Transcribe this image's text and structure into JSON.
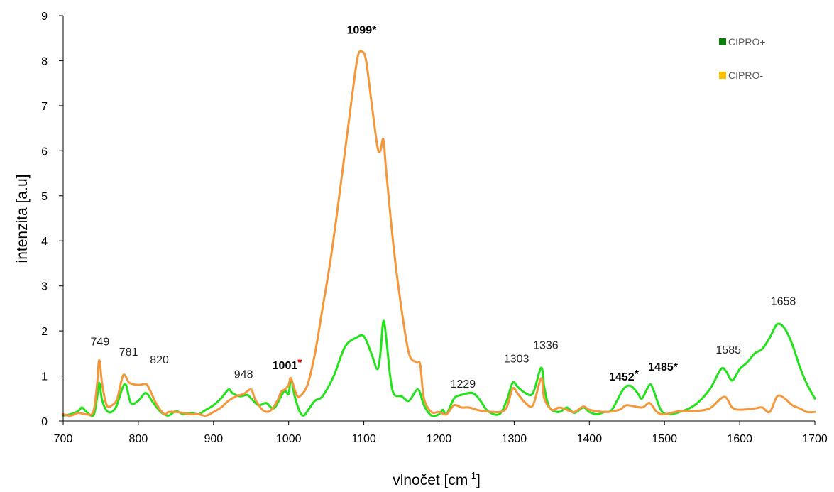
{
  "chart_data": {
    "type": "line",
    "xlabel": "vlnočet [cm",
    "xlabel_sup": "-1",
    "xlabel_end": "]",
    "ylabel": "intenzita [a.u]",
    "xlim": [
      700,
      1700
    ],
    "ylim": [
      0,
      9
    ],
    "x_ticks": [
      "700",
      "800",
      "900",
      "1000",
      "1100",
      "1200",
      "1300",
      "1400",
      "1500",
      "1600",
      "1700"
    ],
    "y_ticks": [
      "0",
      "1",
      "2",
      "3",
      "4",
      "5",
      "6",
      "7",
      "8",
      "9"
    ],
    "grid": false,
    "legend_position": "top-right",
    "legend": [
      {
        "label": "CIPRO+",
        "color": "#0a7d0a"
      },
      {
        "label": "CIPRO-",
        "color": "#ffc000"
      }
    ],
    "series": [
      {
        "name": "CIPRO+",
        "color": "#22e31a",
        "points": [
          [
            700,
            0.12
          ],
          [
            710,
            0.15
          ],
          [
            720,
            0.22
          ],
          [
            725,
            0.3
          ],
          [
            730,
            0.22
          ],
          [
            740,
            0.12
          ],
          [
            745,
            0.5
          ],
          [
            748,
            0.85
          ],
          [
            752,
            0.45
          ],
          [
            760,
            0.2
          ],
          [
            770,
            0.3
          ],
          [
            782,
            0.82
          ],
          [
            790,
            0.4
          ],
          [
            800,
            0.45
          ],
          [
            810,
            0.62
          ],
          [
            820,
            0.4
          ],
          [
            830,
            0.2
          ],
          [
            840,
            0.12
          ],
          [
            850,
            0.22
          ],
          [
            860,
            0.15
          ],
          [
            870,
            0.18
          ],
          [
            880,
            0.15
          ],
          [
            890,
            0.25
          ],
          [
            900,
            0.35
          ],
          [
            910,
            0.5
          ],
          [
            920,
            0.7
          ],
          [
            925,
            0.62
          ],
          [
            935,
            0.55
          ],
          [
            945,
            0.58
          ],
          [
            950,
            0.5
          ],
          [
            960,
            0.35
          ],
          [
            970,
            0.4
          ],
          [
            980,
            0.28
          ],
          [
            990,
            0.55
          ],
          [
            995,
            0.68
          ],
          [
            1000,
            0.6
          ],
          [
            1003,
            0.95
          ],
          [
            1008,
            0.55
          ],
          [
            1015,
            0.2
          ],
          [
            1020,
            0.12
          ],
          [
            1025,
            0.22
          ],
          [
            1035,
            0.45
          ],
          [
            1045,
            0.55
          ],
          [
            1060,
            1.0
          ],
          [
            1075,
            1.65
          ],
          [
            1090,
            1.85
          ],
          [
            1100,
            1.88
          ],
          [
            1110,
            1.5
          ],
          [
            1118,
            1.15
          ],
          [
            1122,
            1.5
          ],
          [
            1126,
            2.22
          ],
          [
            1130,
            1.8
          ],
          [
            1135,
            1.0
          ],
          [
            1140,
            0.6
          ],
          [
            1150,
            0.55
          ],
          [
            1160,
            0.45
          ],
          [
            1172,
            0.7
          ],
          [
            1180,
            0.35
          ],
          [
            1190,
            0.12
          ],
          [
            1200,
            0.15
          ],
          [
            1205,
            0.25
          ],
          [
            1210,
            0.15
          ],
          [
            1220,
            0.5
          ],
          [
            1230,
            0.58
          ],
          [
            1245,
            0.62
          ],
          [
            1255,
            0.45
          ],
          [
            1265,
            0.22
          ],
          [
            1280,
            0.15
          ],
          [
            1290,
            0.45
          ],
          [
            1298,
            0.85
          ],
          [
            1305,
            0.75
          ],
          [
            1315,
            0.62
          ],
          [
            1325,
            0.62
          ],
          [
            1336,
            1.18
          ],
          [
            1340,
            0.75
          ],
          [
            1347,
            0.3
          ],
          [
            1360,
            0.2
          ],
          [
            1370,
            0.3
          ],
          [
            1380,
            0.18
          ],
          [
            1392,
            0.3
          ],
          [
            1400,
            0.2
          ],
          [
            1410,
            0.15
          ],
          [
            1420,
            0.2
          ],
          [
            1430,
            0.25
          ],
          [
            1445,
            0.7
          ],
          [
            1455,
            0.78
          ],
          [
            1465,
            0.6
          ],
          [
            1470,
            0.5
          ],
          [
            1480,
            0.8
          ],
          [
            1485,
            0.7
          ],
          [
            1495,
            0.25
          ],
          [
            1505,
            0.15
          ],
          [
            1520,
            0.2
          ],
          [
            1540,
            0.35
          ],
          [
            1560,
            0.7
          ],
          [
            1575,
            1.15
          ],
          [
            1582,
            1.1
          ],
          [
            1590,
            0.9
          ],
          [
            1600,
            1.15
          ],
          [
            1610,
            1.3
          ],
          [
            1620,
            1.5
          ],
          [
            1630,
            1.6
          ],
          [
            1640,
            1.85
          ],
          [
            1650,
            2.15
          ],
          [
            1660,
            2.05
          ],
          [
            1670,
            1.7
          ],
          [
            1680,
            1.2
          ],
          [
            1690,
            0.8
          ],
          [
            1700,
            0.5
          ]
        ]
      },
      {
        "name": "CIPRO-",
        "color": "#f4973a",
        "points": [
          [
            700,
            0.15
          ],
          [
            710,
            0.12
          ],
          [
            720,
            0.18
          ],
          [
            730,
            0.15
          ],
          [
            740,
            0.2
          ],
          [
            745,
            0.8
          ],
          [
            748,
            1.35
          ],
          [
            752,
            0.8
          ],
          [
            758,
            0.35
          ],
          [
            765,
            0.35
          ],
          [
            772,
            0.5
          ],
          [
            780,
            1.02
          ],
          [
            788,
            0.85
          ],
          [
            800,
            0.8
          ],
          [
            810,
            0.82
          ],
          [
            815,
            0.7
          ],
          [
            825,
            0.35
          ],
          [
            835,
            0.15
          ],
          [
            840,
            0.2
          ],
          [
            850,
            0.2
          ],
          [
            860,
            0.18
          ],
          [
            870,
            0.15
          ],
          [
            880,
            0.15
          ],
          [
            890,
            0.12
          ],
          [
            900,
            0.2
          ],
          [
            910,
            0.3
          ],
          [
            920,
            0.45
          ],
          [
            930,
            0.55
          ],
          [
            940,
            0.6
          ],
          [
            950,
            0.7
          ],
          [
            955,
            0.5
          ],
          [
            965,
            0.25
          ],
          [
            975,
            0.22
          ],
          [
            985,
            0.45
          ],
          [
            990,
            0.65
          ],
          [
            995,
            0.7
          ],
          [
            1000,
            0.8
          ],
          [
            1003,
            0.95
          ],
          [
            1010,
            0.6
          ],
          [
            1015,
            0.55
          ],
          [
            1025,
            0.8
          ],
          [
            1035,
            1.5
          ],
          [
            1045,
            2.5
          ],
          [
            1055,
            3.5
          ],
          [
            1065,
            4.7
          ],
          [
            1075,
            6.0
          ],
          [
            1085,
            7.3
          ],
          [
            1092,
            8.1
          ],
          [
            1098,
            8.2
          ],
          [
            1103,
            8.0
          ],
          [
            1110,
            7.1
          ],
          [
            1118,
            6.1
          ],
          [
            1122,
            6.0
          ],
          [
            1126,
            6.25
          ],
          [
            1130,
            5.5
          ],
          [
            1140,
            3.8
          ],
          [
            1150,
            2.5
          ],
          [
            1160,
            1.5
          ],
          [
            1170,
            1.3
          ],
          [
            1175,
            1.25
          ],
          [
            1180,
            0.5
          ],
          [
            1190,
            0.2
          ],
          [
            1200,
            0.2
          ],
          [
            1210,
            0.15
          ],
          [
            1220,
            0.35
          ],
          [
            1230,
            0.3
          ],
          [
            1240,
            0.3
          ],
          [
            1250,
            0.25
          ],
          [
            1260,
            0.22
          ],
          [
            1280,
            0.2
          ],
          [
            1290,
            0.3
          ],
          [
            1298,
            0.72
          ],
          [
            1305,
            0.6
          ],
          [
            1315,
            0.4
          ],
          [
            1325,
            0.35
          ],
          [
            1336,
            0.95
          ],
          [
            1340,
            0.5
          ],
          [
            1350,
            0.25
          ],
          [
            1360,
            0.3
          ],
          [
            1370,
            0.25
          ],
          [
            1380,
            0.2
          ],
          [
            1392,
            0.32
          ],
          [
            1400,
            0.25
          ],
          [
            1420,
            0.2
          ],
          [
            1440,
            0.25
          ],
          [
            1450,
            0.35
          ],
          [
            1470,
            0.3
          ],
          [
            1480,
            0.4
          ],
          [
            1490,
            0.2
          ],
          [
            1500,
            0.15
          ],
          [
            1520,
            0.22
          ],
          [
            1540,
            0.22
          ],
          [
            1560,
            0.28
          ],
          [
            1575,
            0.5
          ],
          [
            1582,
            0.52
          ],
          [
            1590,
            0.3
          ],
          [
            1600,
            0.25
          ],
          [
            1620,
            0.28
          ],
          [
            1630,
            0.3
          ],
          [
            1640,
            0.2
          ],
          [
            1650,
            0.55
          ],
          [
            1660,
            0.5
          ],
          [
            1670,
            0.35
          ],
          [
            1680,
            0.28
          ],
          [
            1690,
            0.2
          ],
          [
            1700,
            0.2
          ]
        ]
      }
    ],
    "annotations": [
      {
        "text": "749",
        "x": 749,
        "y": 1.68,
        "bold": false
      },
      {
        "text": "781",
        "x": 787,
        "y": 1.45,
        "bold": false
      },
      {
        "text": "820",
        "x": 828,
        "y": 1.28,
        "bold": false
      },
      {
        "text": "948",
        "x": 940,
        "y": 0.95,
        "bold": false
      },
      {
        "text": "1001",
        "x": 998,
        "y": 1.15,
        "bold": true,
        "star": "*",
        "star_color": "#ff0000"
      },
      {
        "text": "1099*",
        "x": 1097,
        "y": 8.6,
        "bold": true
      },
      {
        "text": "1229",
        "x": 1232,
        "y": 0.74,
        "bold": false
      },
      {
        "text": "1303",
        "x": 1303,
        "y": 1.3,
        "bold": false
      },
      {
        "text": "1336",
        "x": 1342,
        "y": 1.6,
        "bold": false
      },
      {
        "text": "1452",
        "x": 1446,
        "y": 0.9,
        "bold": true,
        "star": "*",
        "star_color": "#000000"
      },
      {
        "text": "1485*",
        "x": 1498,
        "y": 1.12,
        "bold": true
      },
      {
        "text": "1585",
        "x": 1585,
        "y": 1.5,
        "bold": false
      },
      {
        "text": "1658",
        "x": 1658,
        "y": 2.58,
        "bold": false
      }
    ]
  }
}
